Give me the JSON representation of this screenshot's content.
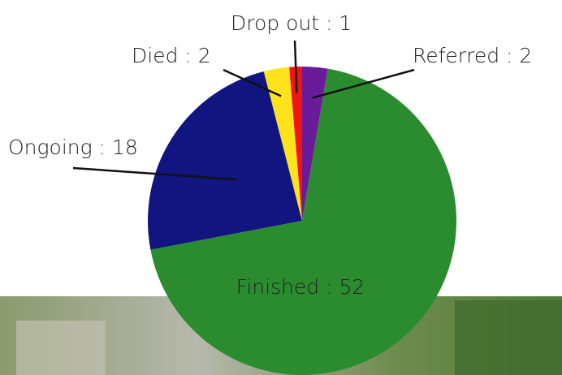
{
  "chart_data": {
    "type": "pie",
    "categories": [
      "Referred : 2",
      "Finished : 52",
      "Ongoing : 18",
      "Died : 2",
      "Drop out : 1"
    ],
    "values": [
      2,
      52,
      18,
      2,
      1
    ],
    "colors": [
      "#6a1b9a",
      "#2a8c2e",
      "#12157f",
      "#fde21c",
      "#f01414"
    ]
  }
}
